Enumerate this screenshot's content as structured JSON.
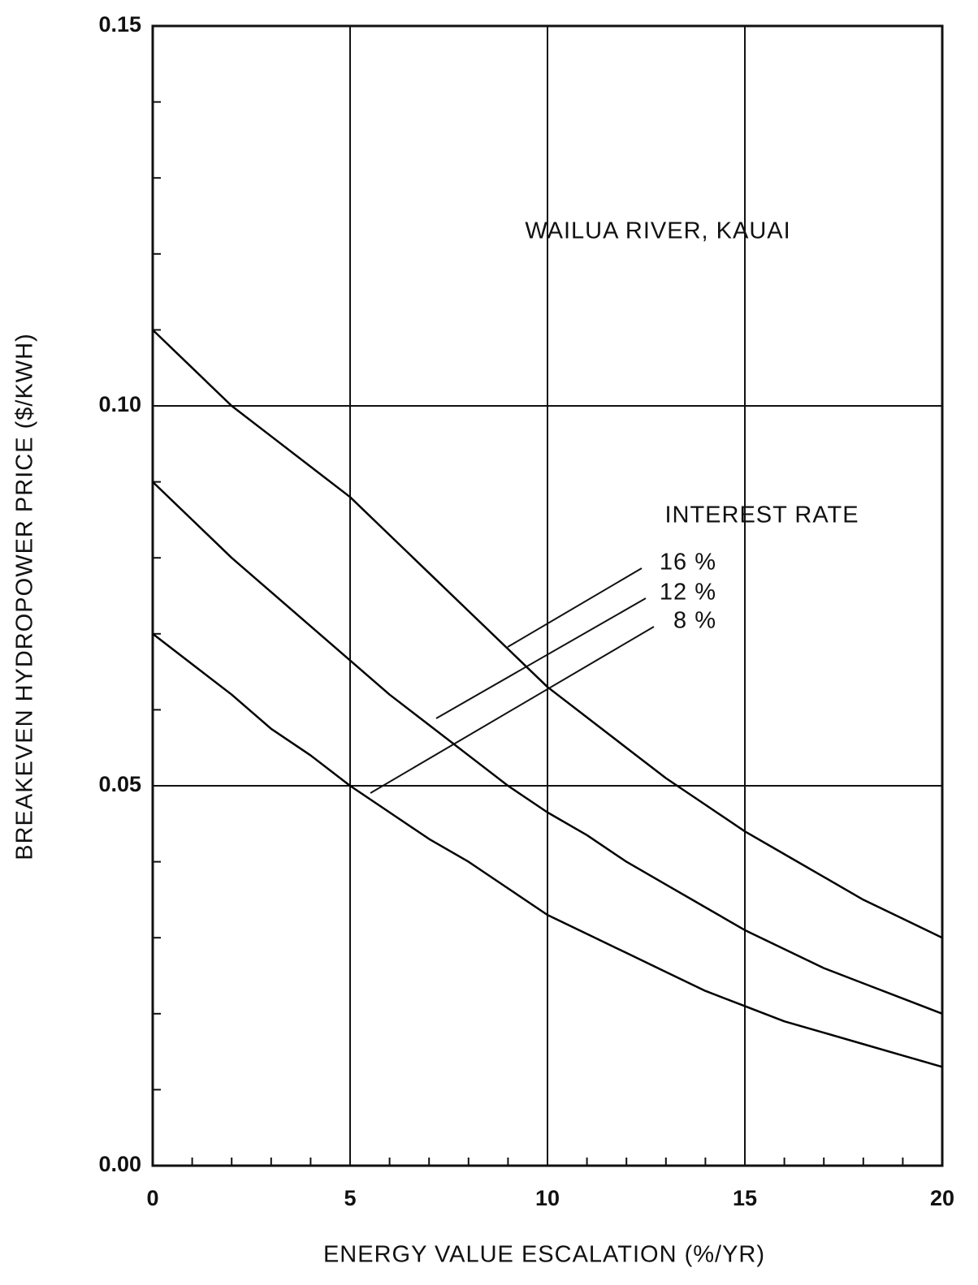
{
  "chart_data": {
    "type": "line",
    "x_label": "ENERGY VALUE ESCALATION (%/YR)",
    "y_label": "BREAKEVEN HYDROPOWER PRICE ($/KWH)",
    "annotations": [
      "WAILUA RIVER, KAUAI",
      "INTEREST RATE"
    ],
    "legend_title": "INTEREST RATE",
    "x": [
      0,
      1,
      2,
      3,
      4,
      5,
      6,
      7,
      8,
      9,
      10,
      11,
      12,
      13,
      14,
      15,
      16,
      17,
      18,
      19,
      20
    ],
    "series": [
      {
        "name": "16 %",
        "color": "#000000",
        "values": [
          0.11,
          0.105,
          0.1,
          0.096,
          0.092,
          0.088,
          0.083,
          0.078,
          0.073,
          0.068,
          0.063,
          0.059,
          0.055,
          0.051,
          0.0475,
          0.044,
          0.041,
          0.038,
          0.035,
          0.0325,
          0.03
        ]
      },
      {
        "name": "12 %",
        "color": "#000000",
        "values": [
          0.09,
          0.085,
          0.08,
          0.0755,
          0.071,
          0.0665,
          0.062,
          0.058,
          0.054,
          0.05,
          0.0465,
          0.0435,
          0.04,
          0.037,
          0.034,
          0.031,
          0.0285,
          0.026,
          0.024,
          0.022,
          0.02
        ]
      },
      {
        "name": "8 %",
        "color": "#000000",
        "values": [
          0.07,
          0.066,
          0.062,
          0.0575,
          0.054,
          0.05,
          0.0465,
          0.043,
          0.04,
          0.0365,
          0.033,
          0.0305,
          0.028,
          0.0255,
          0.023,
          0.021,
          0.019,
          0.0175,
          0.016,
          0.0145,
          0.013
        ]
      }
    ],
    "xlim": [
      0,
      20
    ],
    "ylim": [
      0,
      0.15
    ],
    "xticks": [
      0,
      5,
      10,
      15,
      20
    ],
    "yticks": [
      {
        "value": 0,
        "label": "0.00"
      },
      {
        "value": 0.05,
        "label": "0.05"
      },
      {
        "value": 0.1,
        "label": "0.10"
      },
      {
        "value": 0.15,
        "label": "0.15"
      }
    ],
    "xminorticks": [
      1,
      2,
      3,
      4,
      6,
      7,
      8,
      9,
      11,
      12,
      13,
      14,
      16,
      17,
      18,
      19
    ],
    "yminorticks": [
      0.01,
      0.02,
      0.03,
      0.04,
      0.06,
      0.07,
      0.08,
      0.09,
      0.11,
      0.12,
      0.13,
      0.14
    ],
    "grid": true
  }
}
